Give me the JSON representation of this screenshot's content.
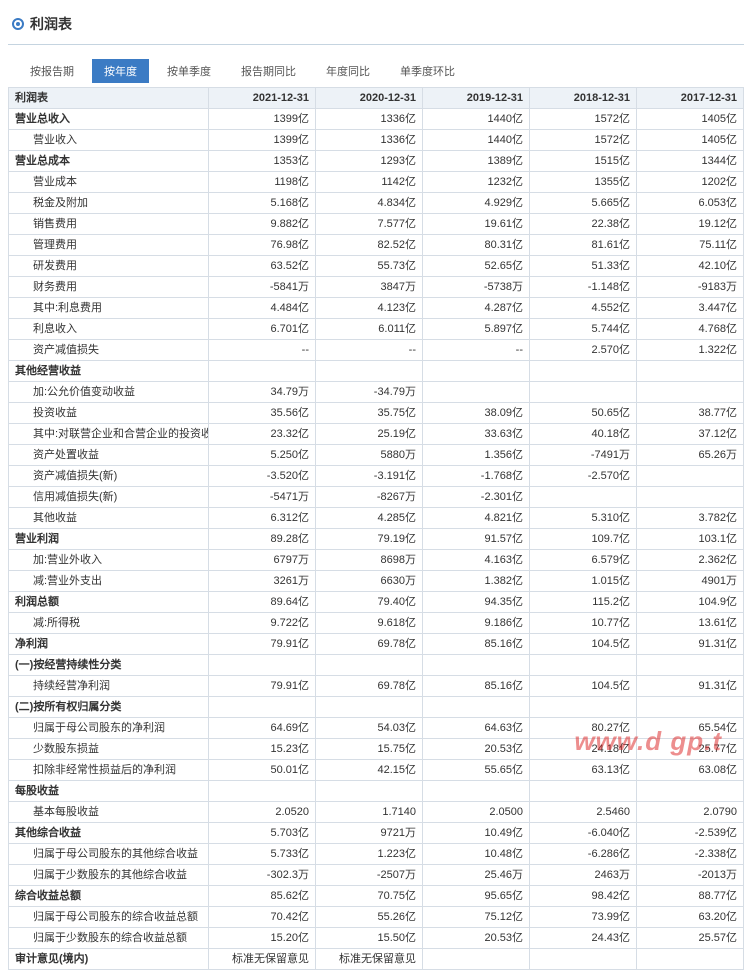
{
  "section_title": "利润表",
  "tabs": [
    "按报告期",
    "按年度",
    "按单季度",
    "报告期同比",
    "年度同比",
    "单季度环比"
  ],
  "active_tab": 1,
  "table_header": [
    "利润表",
    "2021-12-31",
    "2020-12-31",
    "2019-12-31",
    "2018-12-31",
    "2017-12-31"
  ],
  "rows": [
    {
      "label": "营业总收入",
      "bold": true,
      "v": [
        "1399亿",
        "1336亿",
        "1440亿",
        "1572亿",
        "1405亿"
      ]
    },
    {
      "label": "营业收入",
      "indent": 1,
      "v": [
        "1399亿",
        "1336亿",
        "1440亿",
        "1572亿",
        "1405亿"
      ]
    },
    {
      "label": "营业总成本",
      "bold": true,
      "v": [
        "1353亿",
        "1293亿",
        "1389亿",
        "1515亿",
        "1344亿"
      ]
    },
    {
      "label": "营业成本",
      "indent": 1,
      "v": [
        "1198亿",
        "1142亿",
        "1232亿",
        "1355亿",
        "1202亿"
      ]
    },
    {
      "label": "税金及附加",
      "indent": 1,
      "v": [
        "5.168亿",
        "4.834亿",
        "4.929亿",
        "5.665亿",
        "6.053亿"
      ]
    },
    {
      "label": "销售费用",
      "indent": 1,
      "v": [
        "9.882亿",
        "7.577亿",
        "19.61亿",
        "22.38亿",
        "19.12亿"
      ]
    },
    {
      "label": "管理费用",
      "indent": 1,
      "v": [
        "76.98亿",
        "82.52亿",
        "80.31亿",
        "81.61亿",
        "75.11亿"
      ]
    },
    {
      "label": "研发费用",
      "indent": 1,
      "v": [
        "63.52亿",
        "55.73亿",
        "52.65亿",
        "51.33亿",
        "42.10亿"
      ]
    },
    {
      "label": "财务费用",
      "indent": 1,
      "v": [
        "-5841万",
        "3847万",
        "-5738万",
        "-1.148亿",
        "-9183万"
      ]
    },
    {
      "label": "其中:利息费用",
      "indent": 1,
      "v": [
        "4.484亿",
        "4.123亿",
        "4.287亿",
        "4.552亿",
        "3.447亿"
      ]
    },
    {
      "label": "利息收入",
      "indent": 1,
      "v": [
        "6.701亿",
        "6.011亿",
        "5.897亿",
        "5.744亿",
        "4.768亿"
      ]
    },
    {
      "label": "资产减值损失",
      "indent": 1,
      "v": [
        "--",
        "--",
        "--",
        "2.570亿",
        "1.322亿"
      ]
    },
    {
      "label": "其他经营收益",
      "bold": true,
      "v": [
        "",
        "",
        "",
        "",
        ""
      ]
    },
    {
      "label": "加:公允价值变动收益",
      "indent": 1,
      "v": [
        "34.79万",
        "-34.79万",
        "",
        "",
        ""
      ]
    },
    {
      "label": "投资收益",
      "indent": 1,
      "v": [
        "35.56亿",
        "35.75亿",
        "38.09亿",
        "50.65亿",
        "38.77亿"
      ]
    },
    {
      "label": "其中:对联营企业和合营企业的投资收益",
      "indent": 1,
      "v": [
        "23.32亿",
        "25.19亿",
        "33.63亿",
        "40.18亿",
        "37.12亿"
      ]
    },
    {
      "label": "资产处置收益",
      "indent": 1,
      "v": [
        "5.250亿",
        "5880万",
        "1.356亿",
        "-7491万",
        "65.26万"
      ]
    },
    {
      "label": "资产减值损失(新)",
      "indent": 1,
      "v": [
        "-3.520亿",
        "-3.191亿",
        "-1.768亿",
        "-2.570亿",
        ""
      ]
    },
    {
      "label": "信用减值损失(新)",
      "indent": 1,
      "v": [
        "-5471万",
        "-8267万",
        "-2.301亿",
        "",
        ""
      ]
    },
    {
      "label": "其他收益",
      "indent": 1,
      "v": [
        "6.312亿",
        "4.285亿",
        "4.821亿",
        "5.310亿",
        "3.782亿"
      ]
    },
    {
      "label": "营业利润",
      "bold": true,
      "v": [
        "89.28亿",
        "79.19亿",
        "91.57亿",
        "109.7亿",
        "103.1亿"
      ]
    },
    {
      "label": "加:营业外收入",
      "indent": 1,
      "v": [
        "6797万",
        "8698万",
        "4.163亿",
        "6.579亿",
        "2.362亿"
      ]
    },
    {
      "label": "减:营业外支出",
      "indent": 1,
      "v": [
        "3261万",
        "6630万",
        "1.382亿",
        "1.015亿",
        "4901万"
      ]
    },
    {
      "label": "利润总额",
      "bold": true,
      "v": [
        "89.64亿",
        "79.40亿",
        "94.35亿",
        "115.2亿",
        "104.9亿"
      ]
    },
    {
      "label": "减:所得税",
      "indent": 1,
      "v": [
        "9.722亿",
        "9.618亿",
        "9.186亿",
        "10.77亿",
        "13.61亿"
      ]
    },
    {
      "label": "净利润",
      "bold": true,
      "v": [
        "79.91亿",
        "69.78亿",
        "85.16亿",
        "104.5亿",
        "91.31亿"
      ]
    },
    {
      "label": "(一)按经营持续性分类",
      "bold": true,
      "v": [
        "",
        "",
        "",
        "",
        ""
      ]
    },
    {
      "label": "持续经营净利润",
      "indent": 1,
      "v": [
        "79.91亿",
        "69.78亿",
        "85.16亿",
        "104.5亿",
        "91.31亿"
      ]
    },
    {
      "label": "(二)按所有权归属分类",
      "bold": true,
      "v": [
        "",
        "",
        "",
        "",
        ""
      ]
    },
    {
      "label": "归属于母公司股东的净利润",
      "indent": 1,
      "v": [
        "64.69亿",
        "54.03亿",
        "64.63亿",
        "80.27亿",
        "65.54亿"
      ]
    },
    {
      "label": "少数股东损益",
      "indent": 1,
      "v": [
        "15.23亿",
        "15.75亿",
        "20.53亿",
        "24.18亿",
        "25.77亿"
      ]
    },
    {
      "label": "扣除非经常性损益后的净利润",
      "indent": 1,
      "v": [
        "50.01亿",
        "42.15亿",
        "55.65亿",
        "63.13亿",
        "63.08亿"
      ]
    },
    {
      "label": "每股收益",
      "bold": true,
      "v": [
        "",
        "",
        "",
        "",
        ""
      ]
    },
    {
      "label": "基本每股收益",
      "indent": 1,
      "v": [
        "2.0520",
        "1.7140",
        "2.0500",
        "2.5460",
        "2.0790"
      ]
    },
    {
      "label": "其他综合收益",
      "bold": true,
      "v": [
        "5.703亿",
        "9721万",
        "10.49亿",
        "-6.040亿",
        "-2.539亿"
      ]
    },
    {
      "label": "归属于母公司股东的其他综合收益",
      "indent": 1,
      "v": [
        "5.733亿",
        "1.223亿",
        "10.48亿",
        "-6.286亿",
        "-2.338亿"
      ]
    },
    {
      "label": "归属于少数股东的其他综合收益",
      "indent": 1,
      "v": [
        "-302.3万",
        "-2507万",
        "25.46万",
        "2463万",
        "-2013万"
      ]
    },
    {
      "label": "综合收益总额",
      "bold": true,
      "v": [
        "85.62亿",
        "70.75亿",
        "95.65亿",
        "98.42亿",
        "88.77亿"
      ]
    },
    {
      "label": "归属于母公司股东的综合收益总额",
      "indent": 1,
      "v": [
        "70.42亿",
        "55.26亿",
        "75.12亿",
        "73.99亿",
        "63.20亿"
      ]
    },
    {
      "label": "归属于少数股东的综合收益总额",
      "indent": 1,
      "v": [
        "15.20亿",
        "15.50亿",
        "20.53亿",
        "24.43亿",
        "25.57亿"
      ]
    },
    {
      "label": "审计意见(境内)",
      "bold": true,
      "v": [
        "标准无保留意见",
        "标准无保留意见",
        "",
        "",
        ""
      ]
    }
  ],
  "watermark": "www.d  gp.t"
}
